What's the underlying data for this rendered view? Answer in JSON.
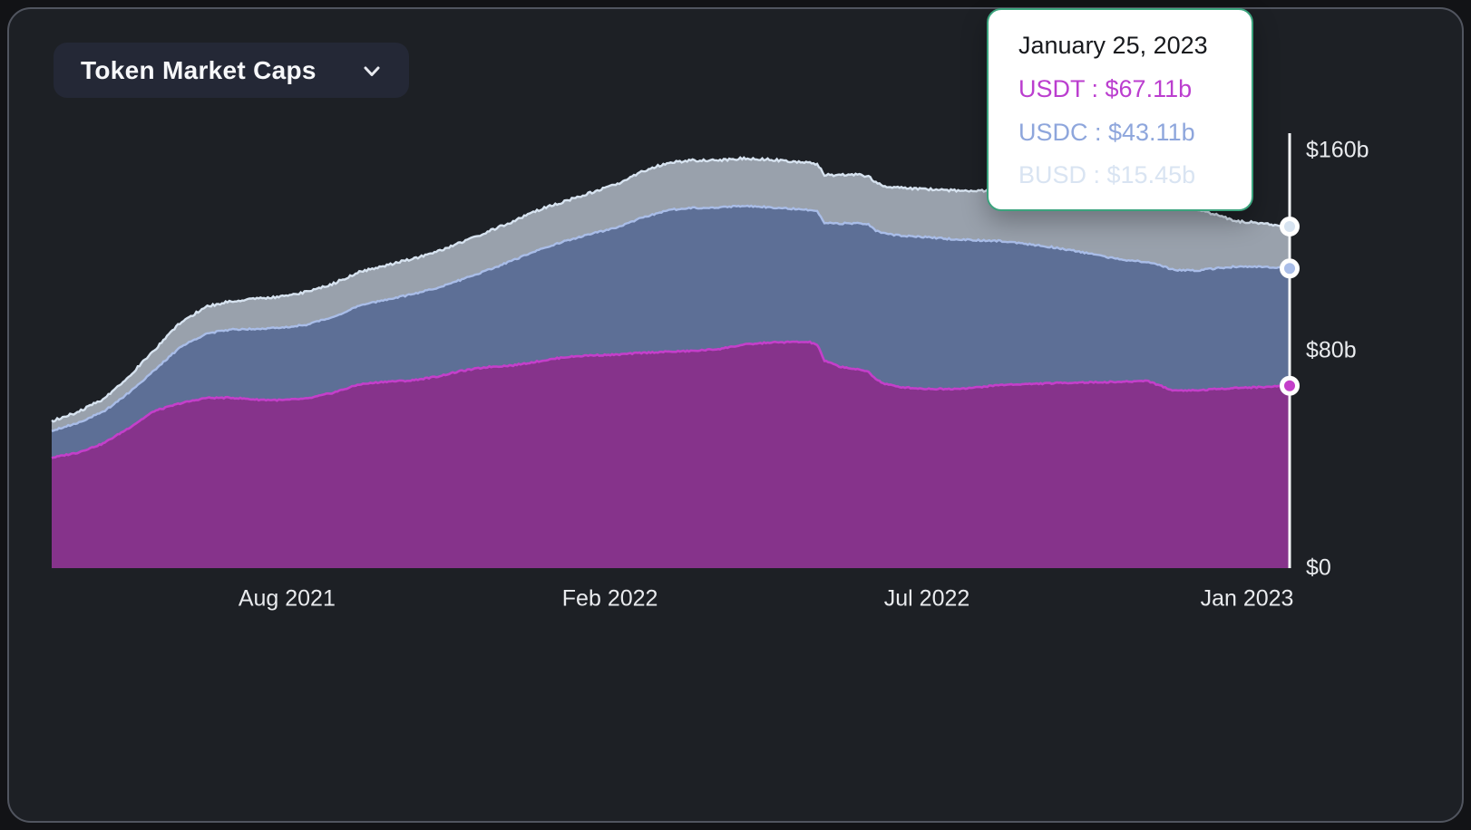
{
  "dropdown": {
    "label": "Token Market Caps"
  },
  "tooltip": {
    "date": "January 25, 2023",
    "separator": " : ",
    "entries": [
      {
        "label": "USDT",
        "value": "$67.11b",
        "color": "#bb3ecf"
      },
      {
        "label": "USDC",
        "value": "$43.11b",
        "color": "#8ea6dc"
      },
      {
        "label": "BUSD",
        "value": "$15.45b",
        "color": "#d9e4f2"
      }
    ]
  },
  "colors": {
    "background": "#1d2025",
    "card_border": "#51555f",
    "button_bg": "#242836",
    "tooltip_border": "#3ba37d",
    "axis_text": "#e9ebee",
    "crosshair": "#f5f7fa",
    "dot_ring": "#ffffff"
  },
  "chart_data": {
    "type": "area",
    "stacked": true,
    "title": "Token Market Caps",
    "units": "billions USD",
    "ylim": [
      0,
      160
    ],
    "grid": false,
    "legend_position": "tooltip",
    "y_ticks": [
      {
        "label": "$160b",
        "value": 160
      },
      {
        "label": "$80b",
        "value": 80
      },
      {
        "label": "$0",
        "value": 0
      }
    ],
    "x_ticks": [
      {
        "label": "Aug 2021",
        "f": 0.19
      },
      {
        "label": "Feb 2022",
        "f": 0.451
      },
      {
        "label": "Jul 2022",
        "f": 0.707
      },
      {
        "label": "Jan 2023",
        "f": 0.9656
      }
    ],
    "crosshair_date": "2023-01-25",
    "x": [
      "2021-03-20",
      "2021-04-03",
      "2021-04-17",
      "2021-05-01",
      "2021-05-15",
      "2021-05-29",
      "2021-06-12",
      "2021-06-26",
      "2021-07-10",
      "2021-07-24",
      "2021-08-07",
      "2021-08-21",
      "2021-09-04",
      "2021-09-18",
      "2021-10-02",
      "2021-10-16",
      "2021-10-30",
      "2021-11-13",
      "2021-11-27",
      "2021-12-11",
      "2021-12-25",
      "2022-01-08",
      "2022-01-22",
      "2022-02-05",
      "2022-02-19",
      "2022-03-05",
      "2022-03-19",
      "2022-04-02",
      "2022-04-16",
      "2022-04-30",
      "2022-05-08",
      "2022-05-12",
      "2022-05-16",
      "2022-05-24",
      "2022-06-01",
      "2022-06-09",
      "2022-06-13",
      "2022-06-17",
      "2022-06-25",
      "2022-07-09",
      "2022-07-23",
      "2022-08-06",
      "2022-08-20",
      "2022-09-03",
      "2022-09-17",
      "2022-10-01",
      "2022-10-15",
      "2022-10-29",
      "2022-11-08",
      "2022-11-12",
      "2022-11-22",
      "2022-12-06",
      "2022-12-16",
      "2022-12-26",
      "2023-01-10",
      "2023-01-25"
    ],
    "series": [
      {
        "name": "USDT",
        "color_fill": "#86338b",
        "color_line": "#c43fca",
        "values": [
          40.6,
          42.5,
          45.8,
          51.5,
          57.8,
          60.6,
          62.6,
          62.7,
          62.0,
          61.8,
          62.4,
          64.6,
          67.6,
          68.6,
          69.0,
          70.4,
          72.6,
          74.0,
          74.6,
          76.1,
          77.6,
          78.3,
          78.5,
          79.2,
          79.6,
          79.9,
          80.6,
          82.2,
          83.0,
          83.2,
          83.1,
          82.2,
          76.3,
          74.2,
          73.3,
          72.3,
          69.6,
          68.0,
          66.7,
          66.0,
          65.9,
          66.4,
          67.4,
          67.7,
          68.0,
          68.3,
          68.4,
          68.6,
          69.0,
          68.0,
          65.4,
          65.4,
          65.9,
          66.3,
          66.6,
          67.11
        ]
      },
      {
        "name": "USDC",
        "color_fill": "#5d6f96",
        "color_line": "#a9bde8",
        "values": [
          10.0,
          10.9,
          11.6,
          13.0,
          14.9,
          20.6,
          23.6,
          25.1,
          26.1,
          26.6,
          27.3,
          27.9,
          28.9,
          30.1,
          31.6,
          32.6,
          33.6,
          35.6,
          38.6,
          41.1,
          42.6,
          44.6,
          46.6,
          49.6,
          52.1,
          52.6,
          52.1,
          51.1,
          49.8,
          48.9,
          48.5,
          48.9,
          50.8,
          52.6,
          53.6,
          54.1,
          54.6,
          55.1,
          55.7,
          55.8,
          55.2,
          54.3,
          53.0,
          51.6,
          50.1,
          48.3,
          46.3,
          44.6,
          43.7,
          44.1,
          44.4,
          44.1,
          44.4,
          44.6,
          44.2,
          43.11
        ]
      },
      {
        "name": "BUSD",
        "color_fill": "#99a1ac",
        "color_line": "#d7e3f0",
        "values": [
          3.5,
          3.9,
          4.7,
          5.9,
          7.5,
          8.9,
          9.9,
          10.4,
          11.0,
          11.6,
          12.0,
          12.2,
          12.4,
          12.6,
          13.0,
          13.3,
          13.7,
          14.1,
          14.4,
          14.6,
          14.7,
          15.1,
          15.9,
          16.9,
          17.4,
          17.5,
          17.3,
          17.5,
          17.5,
          17.5,
          17.4,
          17.5,
          17.6,
          17.8,
          17.9,
          17.8,
          17.7,
          17.6,
          17.6,
          17.7,
          17.9,
          18.1,
          18.7,
          19.4,
          20.4,
          21.1,
          21.7,
          22.3,
          22.6,
          22.9,
          22.8,
          22.2,
          19.8,
          16.8,
          16.1,
          15.45
        ]
      }
    ]
  }
}
